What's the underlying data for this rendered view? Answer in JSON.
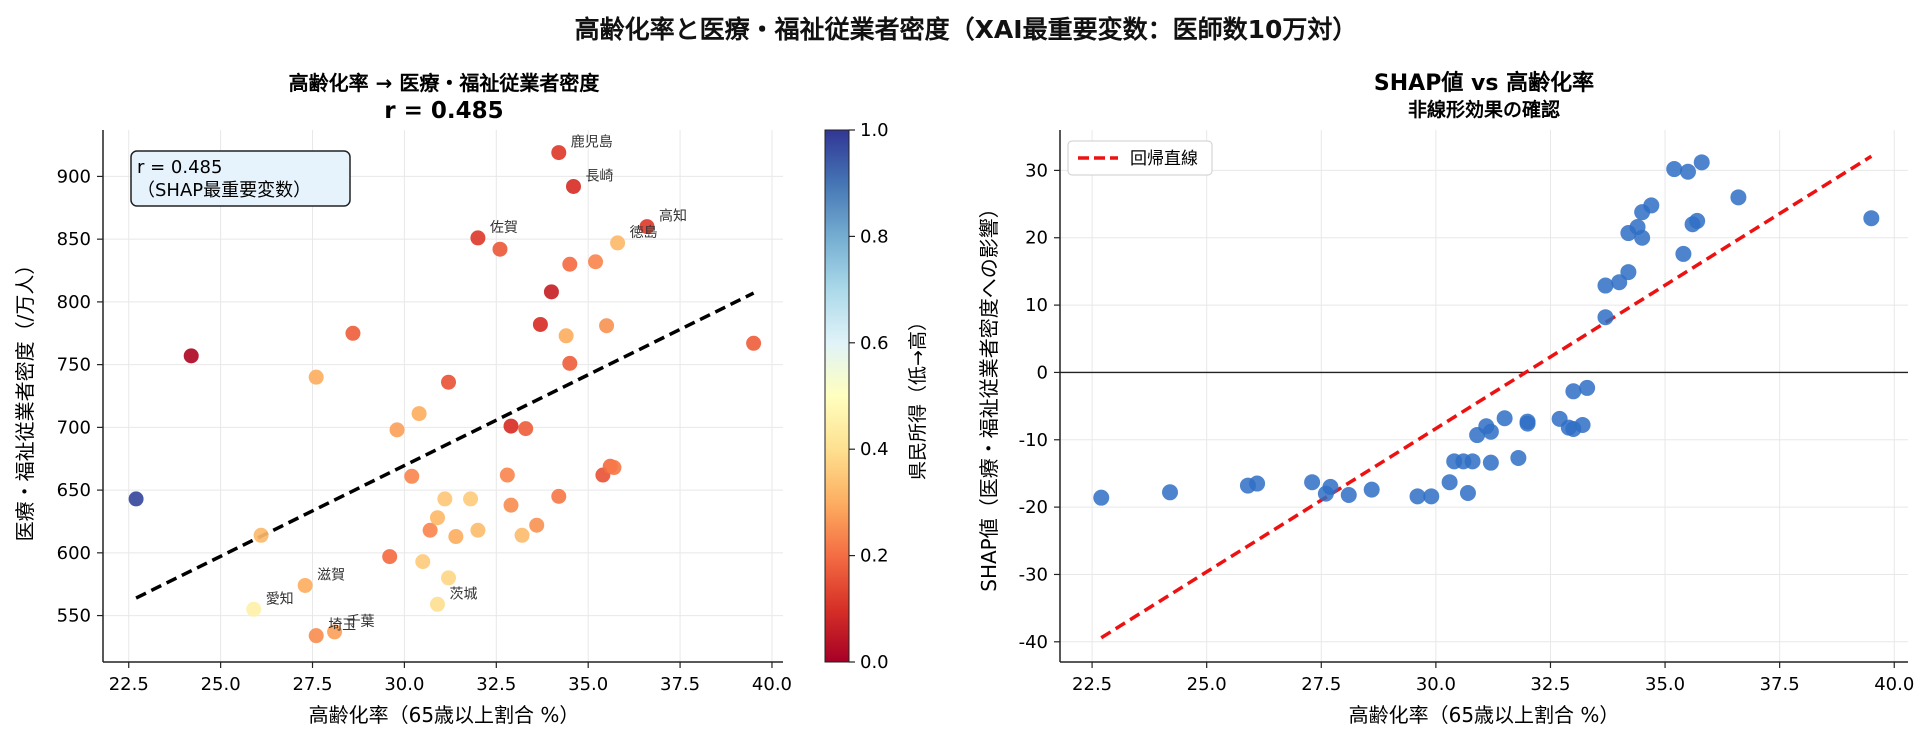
{
  "suptitle": "高齢化率と医療・福祉従業者密度（XAI最重要変数：医師数10万対）",
  "chart_data": [
    {
      "type": "scatter",
      "title": "高齢化率 → 医療・福祉従業者密度",
      "subtitle": "r = 0.485",
      "xlabel": "高齢化率（65歳以上割合 %）",
      "ylabel": "医療・福祉従業者密度（/万人）",
      "xlim": [
        21.8,
        40.3
      ],
      "ylim": [
        513,
        937
      ],
      "xticks": [
        "22.5",
        "25.0",
        "27.5",
        "30.0",
        "32.5",
        "35.0",
        "37.5",
        "40.0"
      ],
      "yticks": [
        "550",
        "600",
        "650",
        "700",
        "750",
        "800",
        "850",
        "900"
      ],
      "grid": true,
      "annotation_box": {
        "line1": "r = 0.485",
        "line2": "（SHAP最重要変数）",
        "position": "top-left"
      },
      "colorbar": {
        "label": "県民所得（低→高）",
        "range": [
          0.0,
          1.0
        ],
        "ticks": [
          "0.0",
          "0.2",
          "0.4",
          "0.6",
          "0.8",
          "1.0"
        ],
        "colormap": "RdYlBu"
      },
      "trend_line": {
        "style": "dashed",
        "color": "#000000",
        "x": [
          22.7,
          39.5
        ],
        "y": [
          564,
          807
        ]
      },
      "points": [
        {
          "x": 22.7,
          "y": 643,
          "c": 0.97
        },
        {
          "x": 24.2,
          "y": 757,
          "c": 0.02
        },
        {
          "x": 25.9,
          "y": 555,
          "c": 0.45,
          "label": "愛知"
        },
        {
          "x": 26.1,
          "y": 614,
          "c": 0.32
        },
        {
          "x": 27.3,
          "y": 574,
          "c": 0.3,
          "label": "滋賀"
        },
        {
          "x": 27.6,
          "y": 534,
          "c": 0.25,
          "label": "埼玉"
        },
        {
          "x": 27.6,
          "y": 740,
          "c": 0.3
        },
        {
          "x": 28.1,
          "y": 537,
          "c": 0.28,
          "label": "千葉"
        },
        {
          "x": 28.6,
          "y": 775,
          "c": 0.18
        },
        {
          "x": 29.6,
          "y": 597,
          "c": 0.2
        },
        {
          "x": 29.8,
          "y": 698,
          "c": 0.28
        },
        {
          "x": 30.2,
          "y": 661,
          "c": 0.24
        },
        {
          "x": 30.4,
          "y": 711,
          "c": 0.3
        },
        {
          "x": 30.5,
          "y": 593,
          "c": 0.36
        },
        {
          "x": 30.7,
          "y": 618,
          "c": 0.24
        },
        {
          "x": 30.9,
          "y": 559,
          "c": 0.4,
          "label": "茨城"
        },
        {
          "x": 30.9,
          "y": 628,
          "c": 0.32
        },
        {
          "x": 31.1,
          "y": 643,
          "c": 0.35
        },
        {
          "x": 31.2,
          "y": 736,
          "c": 0.16
        },
        {
          "x": 31.2,
          "y": 580,
          "c": 0.38
        },
        {
          "x": 31.4,
          "y": 613,
          "c": 0.3
        },
        {
          "x": 31.8,
          "y": 643,
          "c": 0.36
        },
        {
          "x": 32.0,
          "y": 851,
          "c": 0.12,
          "label": "佐賀"
        },
        {
          "x": 32.0,
          "y": 618,
          "c": 0.33
        },
        {
          "x": 32.6,
          "y": 842,
          "c": 0.17
        },
        {
          "x": 32.8,
          "y": 662,
          "c": 0.24
        },
        {
          "x": 32.9,
          "y": 638,
          "c": 0.25
        },
        {
          "x": 32.9,
          "y": 701,
          "c": 0.1
        },
        {
          "x": 33.2,
          "y": 614,
          "c": 0.33
        },
        {
          "x": 33.3,
          "y": 699,
          "c": 0.18
        },
        {
          "x": 33.6,
          "y": 622,
          "c": 0.26
        },
        {
          "x": 33.7,
          "y": 782,
          "c": 0.1
        },
        {
          "x": 34.0,
          "y": 808,
          "c": 0.07
        },
        {
          "x": 34.2,
          "y": 645,
          "c": 0.22
        },
        {
          "x": 34.2,
          "y": 919,
          "c": 0.12,
          "label": "鹿児島"
        },
        {
          "x": 34.4,
          "y": 773,
          "c": 0.3
        },
        {
          "x": 34.5,
          "y": 830,
          "c": 0.2
        },
        {
          "x": 34.5,
          "y": 751,
          "c": 0.18
        },
        {
          "x": 34.6,
          "y": 892,
          "c": 0.1,
          "label": "長崎"
        },
        {
          "x": 35.2,
          "y": 832,
          "c": 0.24
        },
        {
          "x": 35.4,
          "y": 662,
          "c": 0.16
        },
        {
          "x": 35.5,
          "y": 781,
          "c": 0.26
        },
        {
          "x": 35.6,
          "y": 669,
          "c": 0.2
        },
        {
          "x": 35.7,
          "y": 668,
          "c": 0.22
        },
        {
          "x": 35.8,
          "y": 847,
          "c": 0.32,
          "label": "徳島"
        },
        {
          "x": 36.6,
          "y": 860,
          "c": 0.12,
          "label": "高知"
        },
        {
          "x": 39.5,
          "y": 767,
          "c": 0.18
        }
      ]
    },
    {
      "type": "scatter",
      "title": "SHAP値 vs 高齢化率",
      "subtitle": "非線形効果の確認",
      "xlabel": "高齢化率（65歳以上割合 %）",
      "ylabel": "SHAP値（医療・福祉従業者密度への影響）",
      "xlim": [
        21.8,
        40.3
      ],
      "ylim": [
        -43,
        36
      ],
      "xticks": [
        "22.5",
        "25.0",
        "27.5",
        "30.0",
        "32.5",
        "35.0",
        "37.5",
        "40.0"
      ],
      "yticks": [
        "-40",
        "-30",
        "-20",
        "-10",
        "0",
        "10",
        "20",
        "30"
      ],
      "grid": true,
      "zero_line": true,
      "legend": {
        "position": "top-left",
        "entries": [
          "回帰直線"
        ]
      },
      "regression_line": {
        "name": "回帰直線",
        "color": "#ee1111",
        "style": "dashed",
        "x": [
          22.7,
          39.5
        ],
        "y": [
          -39.4,
          32.1
        ]
      },
      "point_color": "#2f6fc4",
      "points": [
        {
          "x": 22.7,
          "y": -18.6
        },
        {
          "x": 24.2,
          "y": -17.8
        },
        {
          "x": 25.9,
          "y": -16.8
        },
        {
          "x": 26.1,
          "y": -16.5
        },
        {
          "x": 27.3,
          "y": -16.3
        },
        {
          "x": 27.6,
          "y": -18.0
        },
        {
          "x": 27.7,
          "y": -17.0
        },
        {
          "x": 28.1,
          "y": -18.2
        },
        {
          "x": 28.6,
          "y": -17.4
        },
        {
          "x": 29.6,
          "y": -18.4
        },
        {
          "x": 29.9,
          "y": -18.4
        },
        {
          "x": 30.3,
          "y": -16.3
        },
        {
          "x": 30.4,
          "y": -13.2
        },
        {
          "x": 30.6,
          "y": -13.2
        },
        {
          "x": 30.7,
          "y": -17.9
        },
        {
          "x": 30.8,
          "y": -13.2
        },
        {
          "x": 30.9,
          "y": -9.3
        },
        {
          "x": 31.1,
          "y": -8.0
        },
        {
          "x": 31.2,
          "y": -13.4
        },
        {
          "x": 31.2,
          "y": -8.8
        },
        {
          "x": 31.5,
          "y": -6.8
        },
        {
          "x": 31.8,
          "y": -12.7
        },
        {
          "x": 32.0,
          "y": -7.3
        },
        {
          "x": 32.0,
          "y": -7.6
        },
        {
          "x": 32.7,
          "y": -6.9
        },
        {
          "x": 32.9,
          "y": -8.2
        },
        {
          "x": 33.0,
          "y": -2.8
        },
        {
          "x": 33.0,
          "y": -8.4
        },
        {
          "x": 33.2,
          "y": -7.8
        },
        {
          "x": 33.3,
          "y": -2.3
        },
        {
          "x": 33.7,
          "y": 8.2
        },
        {
          "x": 33.7,
          "y": 12.9
        },
        {
          "x": 34.0,
          "y": 13.4
        },
        {
          "x": 34.2,
          "y": 14.9
        },
        {
          "x": 34.2,
          "y": 20.7
        },
        {
          "x": 34.4,
          "y": 21.6
        },
        {
          "x": 34.5,
          "y": 23.8
        },
        {
          "x": 34.5,
          "y": 20.0
        },
        {
          "x": 34.7,
          "y": 24.8
        },
        {
          "x": 35.2,
          "y": 30.2
        },
        {
          "x": 35.4,
          "y": 17.6
        },
        {
          "x": 35.5,
          "y": 29.8
        },
        {
          "x": 35.6,
          "y": 22.0
        },
        {
          "x": 35.7,
          "y": 22.5
        },
        {
          "x": 35.8,
          "y": 31.2
        },
        {
          "x": 36.6,
          "y": 26.0
        },
        {
          "x": 39.5,
          "y": 22.9
        }
      ]
    }
  ]
}
